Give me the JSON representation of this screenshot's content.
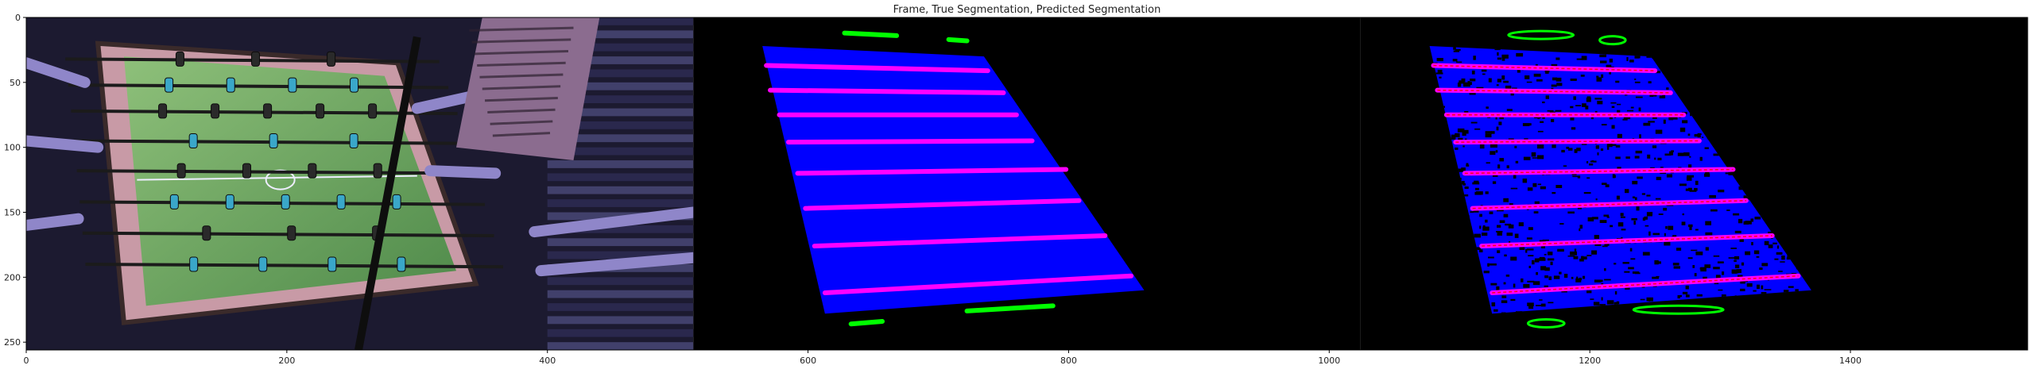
{
  "chart_data": {
    "type": "image",
    "title": "Frame, True Segmentation, Predicted Segmentation",
    "xlim": [
      0,
      1536
    ],
    "ylim": [
      256,
      0
    ],
    "xticks": [
      0,
      200,
      400,
      600,
      800,
      1000,
      1200,
      1400
    ],
    "yticks": [
      0,
      50,
      100,
      150,
      200,
      250
    ],
    "panels": [
      {
        "name": "Frame",
        "x_range": [
          0,
          512
        ],
        "content": "photo of a foosball table with players' hands",
        "table_corners": [
          [
            55,
            20
          ],
          [
            285,
            35
          ],
          [
            345,
            205
          ],
          [
            75,
            235
          ]
        ],
        "rod_rows": [
          32,
          52,
          72,
          95,
          118,
          142,
          166,
          190
        ]
      },
      {
        "name": "True Segmentation",
        "x_range": [
          512,
          1024
        ],
        "table_polygon": [
          [
            565,
            22
          ],
          [
            735,
            30
          ],
          [
            858,
            210
          ],
          [
            613,
            228
          ]
        ],
        "rods": [
          [
            [
              568,
              37
            ],
            [
              738,
              41
            ]
          ],
          [
            [
              571,
              56
            ],
            [
              750,
              58
            ]
          ],
          [
            [
              578,
              75
            ],
            [
              760,
              75
            ]
          ],
          [
            [
              585,
              96
            ],
            [
              772,
              95
            ]
          ],
          [
            [
              592,
              120
            ],
            [
              798,
              117
            ]
          ],
          [
            [
              598,
              147
            ],
            [
              808,
              141
            ]
          ],
          [
            [
              605,
              176
            ],
            [
              828,
              168
            ]
          ],
          [
            [
              613,
              212
            ],
            [
              848,
              199
            ]
          ]
        ],
        "markers": [
          [
            [
              628,
              12
            ],
            [
              668,
              14
            ]
          ],
          [
            [
              708,
              17
            ],
            [
              722,
              18
            ]
          ],
          [
            [
              722,
              226
            ],
            [
              788,
              222
            ]
          ],
          [
            [
              633,
              236
            ],
            [
              657,
              234
            ]
          ]
        ]
      },
      {
        "name": "Predicted Segmentation",
        "x_range": [
          1024,
          1536
        ],
        "table_polygon": [
          [
            1077,
            22
          ],
          [
            1247,
            30
          ],
          [
            1370,
            210
          ],
          [
            1125,
            228
          ]
        ],
        "rods": [
          [
            [
              1080,
              37
            ],
            [
              1250,
              41
            ]
          ],
          [
            [
              1083,
              56
            ],
            [
              1262,
              58
            ]
          ],
          [
            [
              1090,
              75
            ],
            [
              1272,
              75
            ]
          ],
          [
            [
              1097,
              96
            ],
            [
              1284,
              95
            ]
          ],
          [
            [
              1104,
              120
            ],
            [
              1310,
              117
            ]
          ],
          [
            [
              1110,
              147
            ],
            [
              1320,
              141
            ]
          ],
          [
            [
              1117,
              176
            ],
            [
              1340,
              168
            ]
          ],
          [
            [
              1125,
              212
            ],
            [
              1360,
              199
            ]
          ]
        ],
        "markers": [
          [
            [
              1140,
              13
            ],
            [
              1185,
              14
            ]
          ],
          [
            [
              1210,
              17
            ],
            [
              1225,
              18
            ]
          ],
          [
            [
              1236,
              226
            ],
            [
              1300,
              224
            ]
          ],
          [
            [
              1155,
              236
            ],
            [
              1178,
              235
            ]
          ]
        ]
      }
    ]
  },
  "colors": {
    "table": "#0000ff",
    "rod": "#ff00ff",
    "marker": "#00ff00",
    "background": "#000000",
    "predicted_edge": "#ff0000"
  }
}
